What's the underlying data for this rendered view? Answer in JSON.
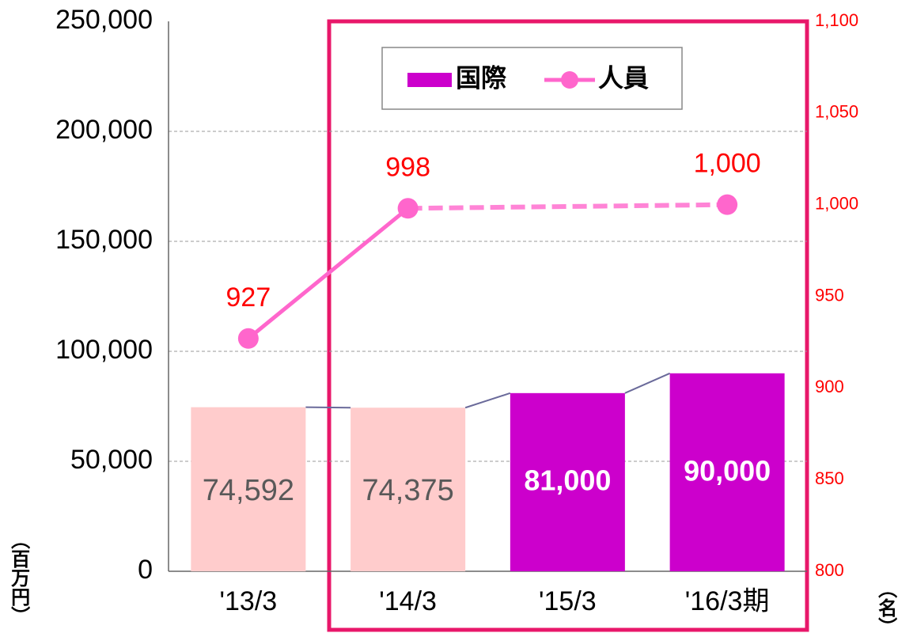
{
  "chart_data": {
    "type": "bar",
    "categories": [
      "'13/3",
      "'14/3",
      "'15/3",
      "'16/3期"
    ],
    "series": [
      {
        "name": "国際",
        "type": "bar",
        "color": "#cc00cc",
        "colors": [
          "#ffcccc",
          "#ffcccc",
          "#cc00cc",
          "#cc00cc"
        ],
        "values": [
          74592,
          74375,
          81000,
          90000
        ],
        "value_labels": [
          "74,592",
          "74,375",
          "81,000",
          "90,000"
        ]
      },
      {
        "name": "人員",
        "type": "line",
        "axis": "y2",
        "color": "#ff66cc",
        "values": [
          927,
          998,
          null,
          1000
        ],
        "value_labels": [
          "927",
          "998",
          null,
          "1,000"
        ]
      }
    ],
    "ylabel": "（百万円）",
    "y2label": "（名）",
    "ylim": [
      0,
      250000
    ],
    "yticks": [
      0,
      {
        "value": 50000,
        "label": "50,000"
      },
      {
        "value": 100000,
        "label": "100,000"
      },
      {
        "value": 150000,
        "label": "150,000"
      },
      {
        "value": 200000,
        "label": "200,000"
      },
      {
        "value": 250000,
        "label": "250,000"
      }
    ],
    "y2lim": [
      800,
      1100
    ],
    "y2ticks": [
      800,
      850,
      900,
      950,
      {
        "value": 1000,
        "label": "1,000"
      },
      {
        "value": 1050,
        "label": "1,050"
      },
      {
        "value": 1100,
        "label": "1,100"
      }
    ],
    "grid": true
  }
}
